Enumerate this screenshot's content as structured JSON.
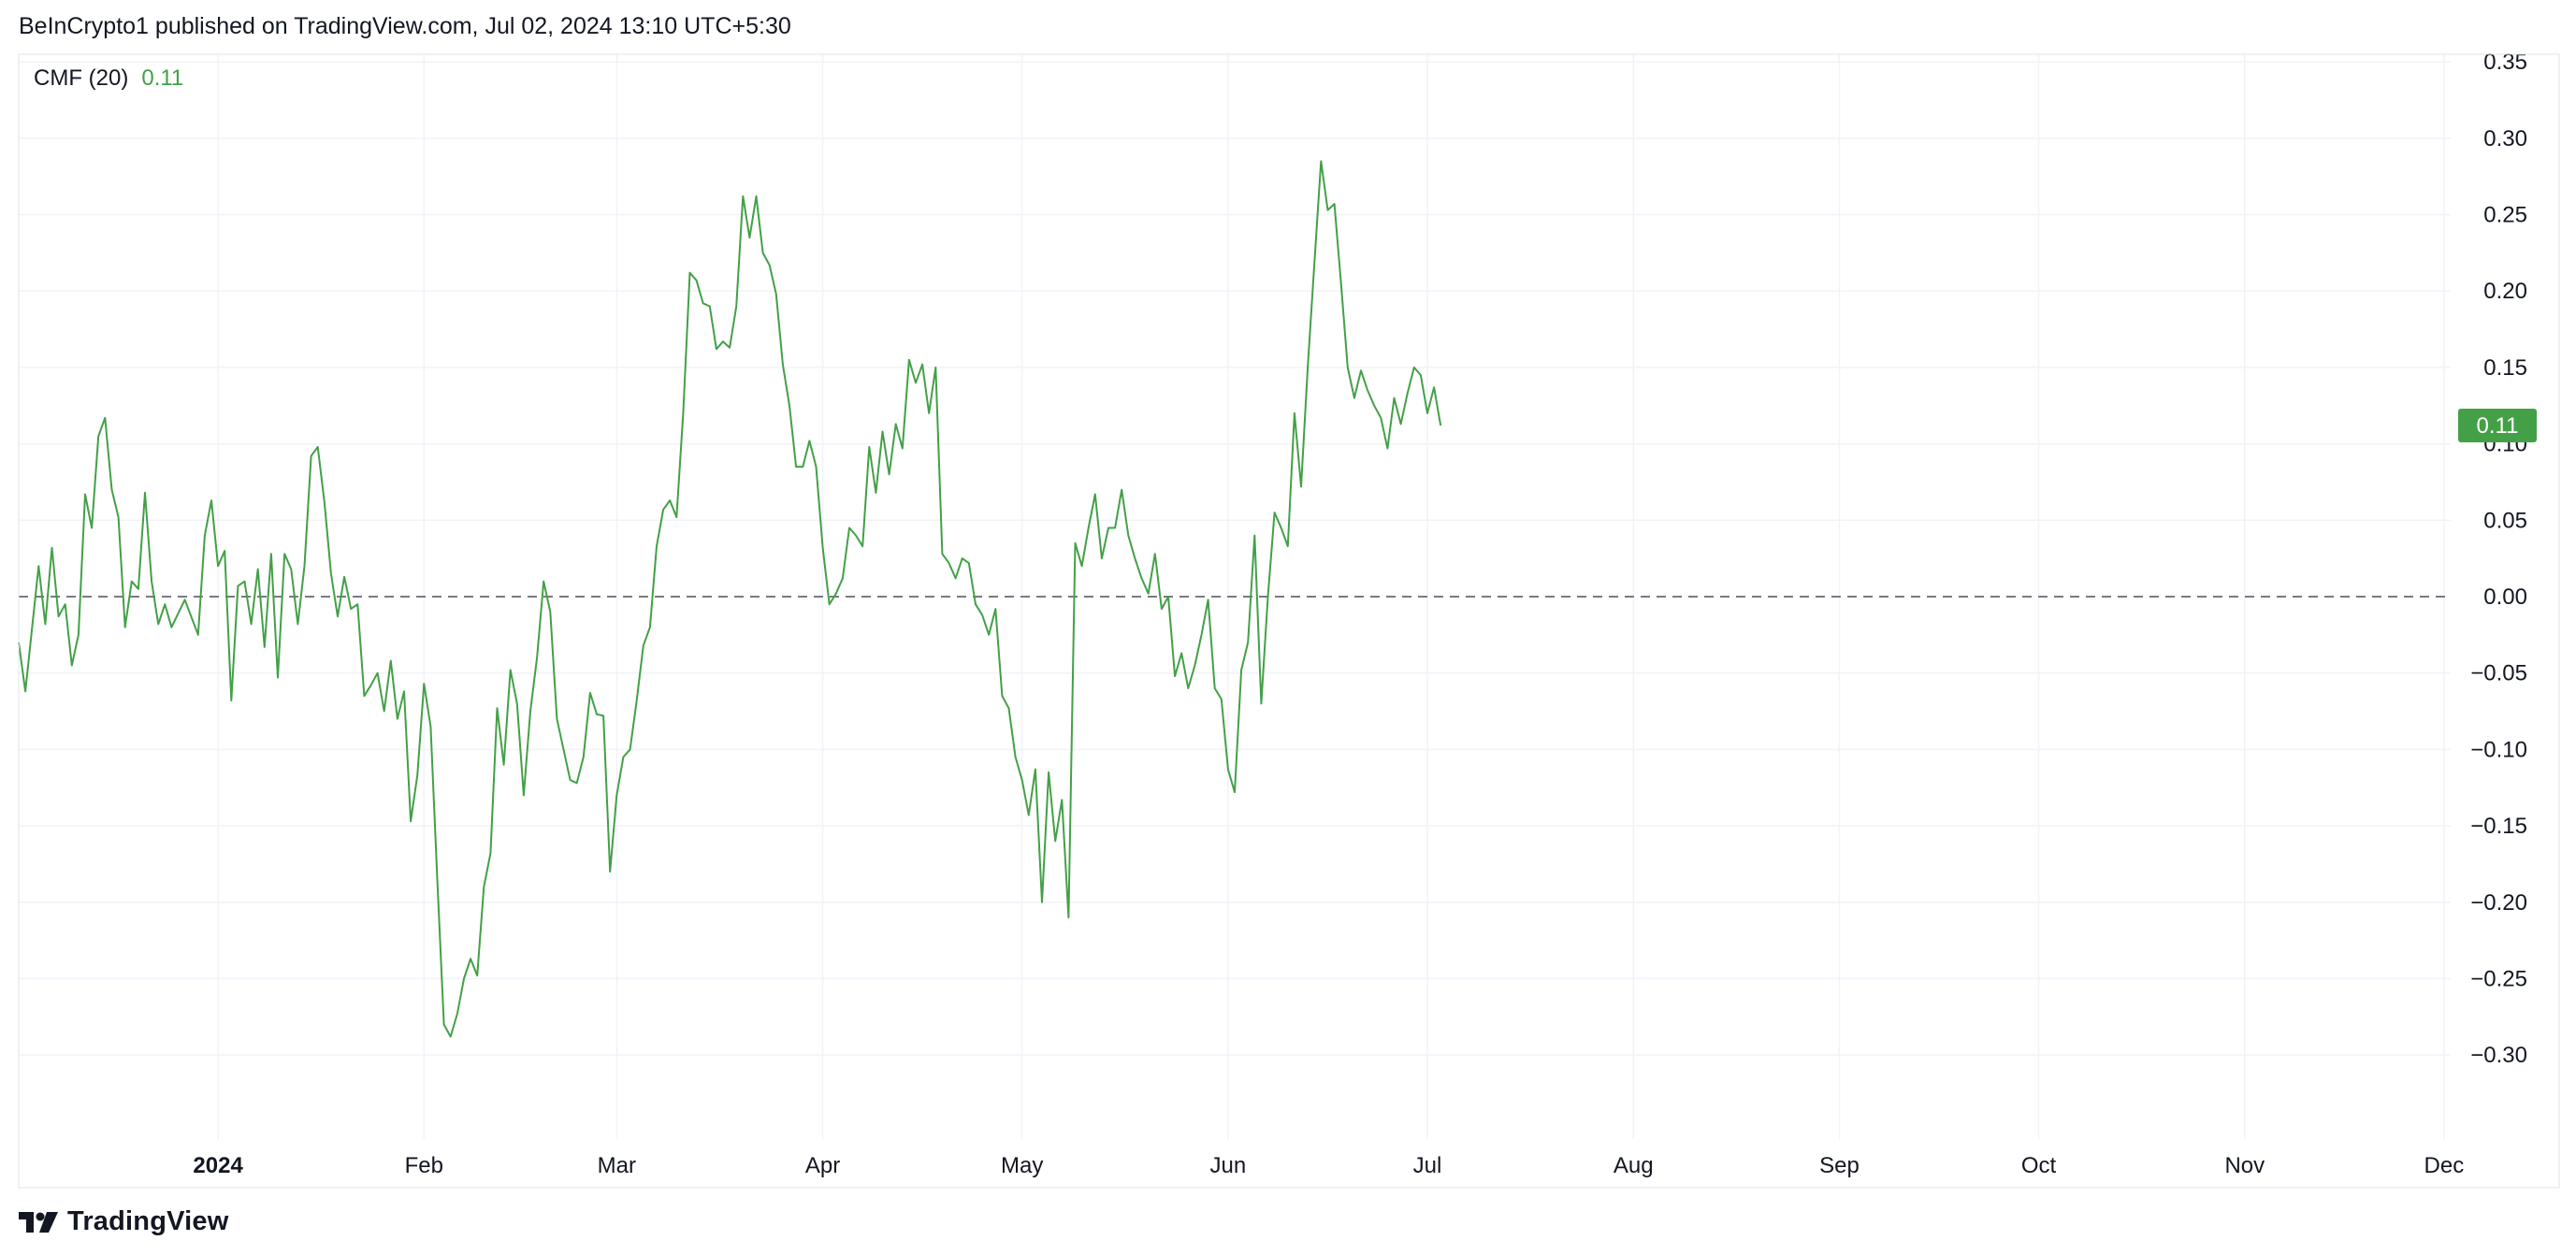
{
  "header": {
    "publisher_text": "BeInCrypto1 published on TradingView.com, Jul 02, 2024 13:10 UTC+5:30"
  },
  "legend": {
    "name": "CMF (20)",
    "value": "0.11"
  },
  "footer": {
    "brand": "TradingView",
    "logo_icon": "tradingview-logo-icon"
  },
  "colors": {
    "line": "#43a047",
    "badge": "#43a047",
    "grid": "#f0f3fa",
    "zero_line": "#787b86"
  },
  "chart_data": {
    "type": "line",
    "title": "",
    "xlabel": "",
    "ylabel": "",
    "x_range": [
      "2023-12-02",
      "2024-12-02"
    ],
    "ylim": [
      -0.355,
      0.355
    ],
    "grid": true,
    "zero_line": "dashed",
    "legend_position": "top-left",
    "last_value_label": "0.11",
    "y_ticks": [
      "0.35",
      "0.30",
      "0.25",
      "0.20",
      "0.15",
      "0.10",
      "0.05",
      "0.00",
      "−0.05",
      "−0.10",
      "−0.15",
      "−0.20",
      "−0.25",
      "−0.30"
    ],
    "y_tick_values": [
      0.35,
      0.3,
      0.25,
      0.2,
      0.15,
      0.1,
      0.05,
      0.0,
      -0.05,
      -0.1,
      -0.15,
      -0.2,
      -0.25,
      -0.3
    ],
    "x_ticks": [
      {
        "label": "2024",
        "date": "2024-01-01",
        "bold": true
      },
      {
        "label": "Feb",
        "date": "2024-02-01"
      },
      {
        "label": "Mar",
        "date": "2024-03-01"
      },
      {
        "label": "Apr",
        "date": "2024-04-01"
      },
      {
        "label": "May",
        "date": "2024-05-01"
      },
      {
        "label": "Jun",
        "date": "2024-06-01"
      },
      {
        "label": "Jul",
        "date": "2024-07-01"
      },
      {
        "label": "Aug",
        "date": "2024-08-01"
      },
      {
        "label": "Sep",
        "date": "2024-09-01"
      },
      {
        "label": "Oct",
        "date": "2024-10-01"
      },
      {
        "label": "Nov",
        "date": "2024-11-01"
      },
      {
        "label": "Dec",
        "date": "2024-12-01"
      }
    ],
    "series": [
      {
        "points": [
          [
            "2023-12-02",
            -0.03
          ],
          [
            "2023-12-03",
            -0.062
          ],
          [
            "2023-12-05",
            0.02
          ],
          [
            "2023-12-06",
            -0.018
          ],
          [
            "2023-12-07",
            0.032
          ],
          [
            "2023-12-08",
            -0.013
          ],
          [
            "2023-12-09",
            -0.005
          ],
          [
            "2023-12-10",
            -0.045
          ],
          [
            "2023-12-11",
            -0.025
          ],
          [
            "2023-12-12",
            0.067
          ],
          [
            "2023-12-13",
            0.045
          ],
          [
            "2023-12-14",
            0.105
          ],
          [
            "2023-12-15",
            0.117
          ],
          [
            "2023-12-16",
            0.07
          ],
          [
            "2023-12-17",
            0.052
          ],
          [
            "2023-12-18",
            -0.02
          ],
          [
            "2023-12-19",
            0.01
          ],
          [
            "2023-12-20",
            0.005
          ],
          [
            "2023-12-21",
            0.068
          ],
          [
            "2023-12-22",
            0.01
          ],
          [
            "2023-12-23",
            -0.018
          ],
          [
            "2023-12-24",
            -0.005
          ],
          [
            "2023-12-25",
            -0.02
          ],
          [
            "2023-12-27",
            -0.002
          ],
          [
            "2023-12-29",
            -0.025
          ],
          [
            "2023-12-30",
            0.04
          ],
          [
            "2023-12-31",
            0.063
          ],
          [
            "2024-01-01",
            0.02
          ],
          [
            "2024-01-02",
            0.03
          ],
          [
            "2024-01-03",
            -0.068
          ],
          [
            "2024-01-04",
            0.007
          ],
          [
            "2024-01-05",
            0.01
          ],
          [
            "2024-01-06",
            -0.018
          ],
          [
            "2024-01-07",
            0.018
          ],
          [
            "2024-01-08",
            -0.033
          ],
          [
            "2024-01-09",
            0.028
          ],
          [
            "2024-01-10",
            -0.053
          ],
          [
            "2024-01-11",
            0.028
          ],
          [
            "2024-01-12",
            0.018
          ],
          [
            "2024-01-13",
            -0.018
          ],
          [
            "2024-01-14",
            0.02
          ],
          [
            "2024-01-15",
            0.092
          ],
          [
            "2024-01-16",
            0.098
          ],
          [
            "2024-01-17",
            0.062
          ],
          [
            "2024-01-18",
            0.015
          ],
          [
            "2024-01-19",
            -0.013
          ],
          [
            "2024-01-20",
            0.013
          ],
          [
            "2024-01-21",
            -0.008
          ],
          [
            "2024-01-22",
            -0.005
          ],
          [
            "2024-01-23",
            -0.065
          ],
          [
            "2024-01-24",
            -0.058
          ],
          [
            "2024-01-25",
            -0.05
          ],
          [
            "2024-01-26",
            -0.075
          ],
          [
            "2024-01-27",
            -0.042
          ],
          [
            "2024-01-28",
            -0.08
          ],
          [
            "2024-01-29",
            -0.062
          ],
          [
            "2024-01-30",
            -0.147
          ],
          [
            "2024-01-31",
            -0.117
          ],
          [
            "2024-02-01",
            -0.057
          ],
          [
            "2024-02-02",
            -0.085
          ],
          [
            "2024-02-03",
            -0.185
          ],
          [
            "2024-02-04",
            -0.28
          ],
          [
            "2024-02-05",
            -0.288
          ],
          [
            "2024-02-06",
            -0.273
          ],
          [
            "2024-02-07",
            -0.25
          ],
          [
            "2024-02-08",
            -0.237
          ],
          [
            "2024-02-09",
            -0.248
          ],
          [
            "2024-02-10",
            -0.19
          ],
          [
            "2024-02-11",
            -0.168
          ],
          [
            "2024-02-12",
            -0.073
          ],
          [
            "2024-02-13",
            -0.11
          ],
          [
            "2024-02-14",
            -0.048
          ],
          [
            "2024-02-15",
            -0.07
          ],
          [
            "2024-02-16",
            -0.13
          ],
          [
            "2024-02-17",
            -0.075
          ],
          [
            "2024-02-18",
            -0.04
          ],
          [
            "2024-02-19",
            0.01
          ],
          [
            "2024-02-20",
            -0.01
          ],
          [
            "2024-02-21",
            -0.08
          ],
          [
            "2024-02-22",
            -0.1
          ],
          [
            "2024-02-23",
            -0.12
          ],
          [
            "2024-02-24",
            -0.122
          ],
          [
            "2024-02-25",
            -0.105
          ],
          [
            "2024-02-26",
            -0.063
          ],
          [
            "2024-02-27",
            -0.077
          ],
          [
            "2024-02-28",
            -0.078
          ],
          [
            "2024-02-29",
            -0.18
          ],
          [
            "2024-03-01",
            -0.13
          ],
          [
            "2024-03-02",
            -0.105
          ],
          [
            "2024-03-03",
            -0.1
          ],
          [
            "2024-03-04",
            -0.068
          ],
          [
            "2024-03-05",
            -0.032
          ],
          [
            "2024-03-06",
            -0.02
          ],
          [
            "2024-03-07",
            0.033
          ],
          [
            "2024-03-08",
            0.057
          ],
          [
            "2024-03-09",
            0.063
          ],
          [
            "2024-03-10",
            0.052
          ],
          [
            "2024-03-11",
            0.12
          ],
          [
            "2024-03-12",
            0.212
          ],
          [
            "2024-03-13",
            0.207
          ],
          [
            "2024-03-14",
            0.192
          ],
          [
            "2024-03-15",
            0.19
          ],
          [
            "2024-03-16",
            0.162
          ],
          [
            "2024-03-17",
            0.167
          ],
          [
            "2024-03-18",
            0.163
          ],
          [
            "2024-03-19",
            0.19
          ],
          [
            "2024-03-20",
            0.262
          ],
          [
            "2024-03-21",
            0.235
          ],
          [
            "2024-03-22",
            0.262
          ],
          [
            "2024-03-23",
            0.225
          ],
          [
            "2024-03-24",
            0.217
          ],
          [
            "2024-03-25",
            0.198
          ],
          [
            "2024-03-26",
            0.152
          ],
          [
            "2024-03-27",
            0.125
          ],
          [
            "2024-03-28",
            0.085
          ],
          [
            "2024-03-29",
            0.085
          ],
          [
            "2024-03-30",
            0.102
          ],
          [
            "2024-03-31",
            0.085
          ],
          [
            "2024-04-01",
            0.032
          ],
          [
            "2024-04-02",
            -0.005
          ],
          [
            "2024-04-03",
            0.002
          ],
          [
            "2024-04-04",
            0.012
          ],
          [
            "2024-04-05",
            0.045
          ],
          [
            "2024-04-06",
            0.04
          ],
          [
            "2024-04-07",
            0.033
          ],
          [
            "2024-04-08",
            0.098
          ],
          [
            "2024-04-09",
            0.068
          ],
          [
            "2024-04-10",
            0.108
          ],
          [
            "2024-04-11",
            0.08
          ],
          [
            "2024-04-12",
            0.113
          ],
          [
            "2024-04-13",
            0.097
          ],
          [
            "2024-04-14",
            0.155
          ],
          [
            "2024-04-15",
            0.14
          ],
          [
            "2024-04-16",
            0.152
          ],
          [
            "2024-04-17",
            0.12
          ],
          [
            "2024-04-18",
            0.15
          ],
          [
            "2024-04-19",
            0.028
          ],
          [
            "2024-04-20",
            0.022
          ],
          [
            "2024-04-21",
            0.012
          ],
          [
            "2024-04-22",
            0.025
          ],
          [
            "2024-04-23",
            0.022
          ],
          [
            "2024-04-24",
            -0.005
          ],
          [
            "2024-04-25",
            -0.012
          ],
          [
            "2024-04-26",
            -0.025
          ],
          [
            "2024-04-27",
            -0.008
          ],
          [
            "2024-04-28",
            -0.065
          ],
          [
            "2024-04-29",
            -0.073
          ],
          [
            "2024-04-30",
            -0.105
          ],
          [
            "2024-05-01",
            -0.12
          ],
          [
            "2024-05-02",
            -0.143
          ],
          [
            "2024-05-03",
            -0.113
          ],
          [
            "2024-05-04",
            -0.2
          ],
          [
            "2024-05-05",
            -0.115
          ],
          [
            "2024-05-06",
            -0.16
          ],
          [
            "2024-05-07",
            -0.133
          ],
          [
            "2024-05-08",
            -0.21
          ],
          [
            "2024-05-09",
            0.035
          ],
          [
            "2024-05-10",
            0.02
          ],
          [
            "2024-05-11",
            0.045
          ],
          [
            "2024-05-12",
            0.067
          ],
          [
            "2024-05-13",
            0.025
          ],
          [
            "2024-05-14",
            0.045
          ],
          [
            "2024-05-15",
            0.045
          ],
          [
            "2024-05-16",
            0.07
          ],
          [
            "2024-05-17",
            0.04
          ],
          [
            "2024-05-18",
            0.025
          ],
          [
            "2024-05-19",
            0.012
          ],
          [
            "2024-05-20",
            0.002
          ],
          [
            "2024-05-21",
            0.028
          ],
          [
            "2024-05-22",
            -0.008
          ],
          [
            "2024-05-23",
            0.0
          ],
          [
            "2024-05-24",
            -0.052
          ],
          [
            "2024-05-25",
            -0.037
          ],
          [
            "2024-05-26",
            -0.06
          ],
          [
            "2024-05-27",
            -0.045
          ],
          [
            "2024-05-28",
            -0.025
          ],
          [
            "2024-05-29",
            -0.002
          ],
          [
            "2024-05-30",
            -0.06
          ],
          [
            "2024-05-31",
            -0.067
          ],
          [
            "2024-06-01",
            -0.113
          ],
          [
            "2024-06-02",
            -0.128
          ],
          [
            "2024-06-03",
            -0.048
          ],
          [
            "2024-06-04",
            -0.03
          ],
          [
            "2024-06-05",
            0.04
          ],
          [
            "2024-06-06",
            -0.07
          ],
          [
            "2024-06-07",
            0.0
          ],
          [
            "2024-06-08",
            0.055
          ],
          [
            "2024-06-09",
            0.045
          ],
          [
            "2024-06-10",
            0.033
          ],
          [
            "2024-06-11",
            0.12
          ],
          [
            "2024-06-12",
            0.072
          ],
          [
            "2024-06-13",
            0.15
          ],
          [
            "2024-06-14",
            0.218
          ],
          [
            "2024-06-15",
            0.285
          ],
          [
            "2024-06-16",
            0.253
          ],
          [
            "2024-06-17",
            0.257
          ],
          [
            "2024-06-18",
            0.205
          ],
          [
            "2024-06-19",
            0.15
          ],
          [
            "2024-06-20",
            0.13
          ],
          [
            "2024-06-21",
            0.148
          ],
          [
            "2024-06-22",
            0.135
          ],
          [
            "2024-06-23",
            0.125
          ],
          [
            "2024-06-24",
            0.117
          ],
          [
            "2024-06-25",
            0.097
          ],
          [
            "2024-06-26",
            0.13
          ],
          [
            "2024-06-27",
            0.113
          ],
          [
            "2024-06-28",
            0.133
          ],
          [
            "2024-06-29",
            0.15
          ],
          [
            "2024-06-30",
            0.145
          ],
          [
            "2024-07-01",
            0.12
          ],
          [
            "2024-07-02",
            0.137
          ],
          [
            "2024-07-03",
            0.112
          ]
        ]
      }
    ]
  }
}
